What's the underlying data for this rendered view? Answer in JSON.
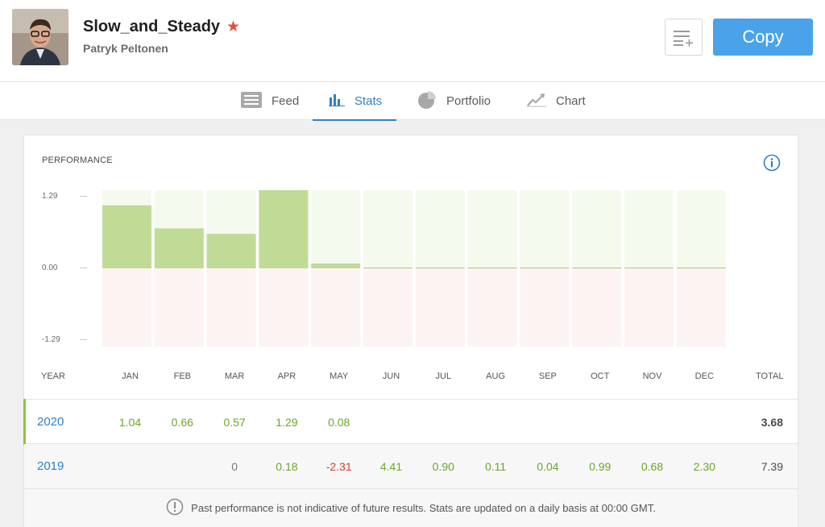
{
  "header": {
    "username": "Slow_and_Steady",
    "fullname": "Patryk Peltonen",
    "copy_label": "Copy"
  },
  "tabs": [
    {
      "label": "Feed",
      "icon": "feed-icon"
    },
    {
      "label": "Stats",
      "icon": "bar-chart-icon",
      "active": true
    },
    {
      "label": "Portfolio",
      "icon": "pie-chart-icon"
    },
    {
      "label": "Chart",
      "icon": "trend-chart-icon"
    }
  ],
  "performance": {
    "title": "PERFORMANCE",
    "y_labels": [
      "1.29",
      "0.00",
      "-1.29"
    ],
    "year_header": "YEAR",
    "total_header": "TOTAL",
    "months": [
      "JAN",
      "FEB",
      "MAR",
      "APR",
      "MAY",
      "JUN",
      "JUL",
      "AUG",
      "SEP",
      "OCT",
      "NOV",
      "DEC"
    ],
    "rows": [
      {
        "year": "2020",
        "cells": [
          "1.04",
          "0.66",
          "0.57",
          "1.29",
          "0.08",
          "",
          "",
          "",
          "",
          "",
          "",
          ""
        ],
        "total": "3.68"
      },
      {
        "year": "2019",
        "cells": [
          "",
          "",
          "0",
          "0.18",
          "-2.31",
          "4.41",
          "0.90",
          "0.11",
          "0.04",
          "0.99",
          "0.68",
          "2.30"
        ],
        "total": "7.39"
      }
    ],
    "note": "Past performance is not indicative of future results. Stats are updated on a daily basis at 00:00 GMT."
  },
  "chart_data": {
    "type": "bar",
    "categories": [
      "JAN",
      "FEB",
      "MAR",
      "APR",
      "MAY",
      "JUN",
      "JUL",
      "AUG",
      "SEP",
      "OCT",
      "NOV",
      "DEC"
    ],
    "values": [
      1.04,
      0.66,
      0.57,
      1.29,
      0.08,
      0,
      0,
      0,
      0,
      0,
      0,
      0
    ],
    "ylim": [
      -1.29,
      1.29
    ],
    "y_ticks": [
      1.29,
      0.0,
      -1.29
    ],
    "title": "PERFORMANCE",
    "xlabel": "",
    "ylabel": "",
    "colors": {
      "positive": "#bfdb96",
      "positive_bg": "#f5faef",
      "negative_bg": "#fdf3f2"
    }
  },
  "colors": {
    "accent": "#2f7fc6",
    "copy_button": "#4aa3ea",
    "positive": "#6aa62a",
    "negative": "#d83a2f",
    "star": "#e04f3a"
  }
}
